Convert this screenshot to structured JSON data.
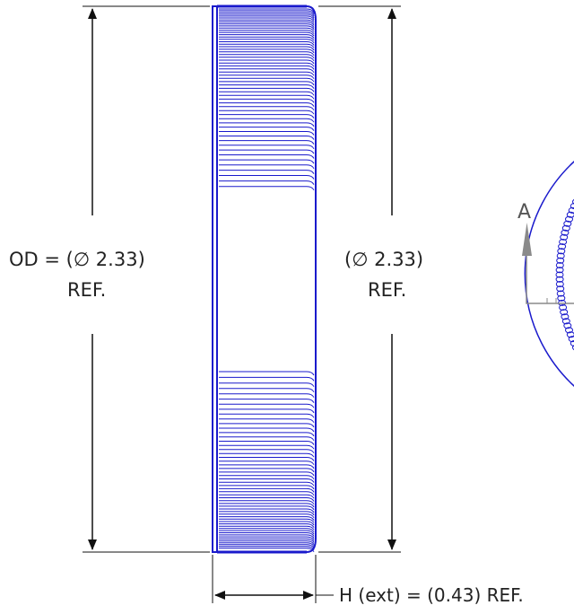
{
  "dimensions": {
    "outer_diameter": {
      "label": "OD = (∅ 2.33)",
      "note": "REF."
    },
    "diameter_ref": {
      "label": "(∅ 2.33)",
      "note": "REF."
    },
    "height": {
      "label": "H (ext) = (0.43) REF."
    }
  },
  "section_marker": {
    "letter": "A"
  },
  "colors": {
    "spring": "#1a1acc",
    "dimension": "#111111",
    "section_arrow": "#8a8a8a"
  }
}
